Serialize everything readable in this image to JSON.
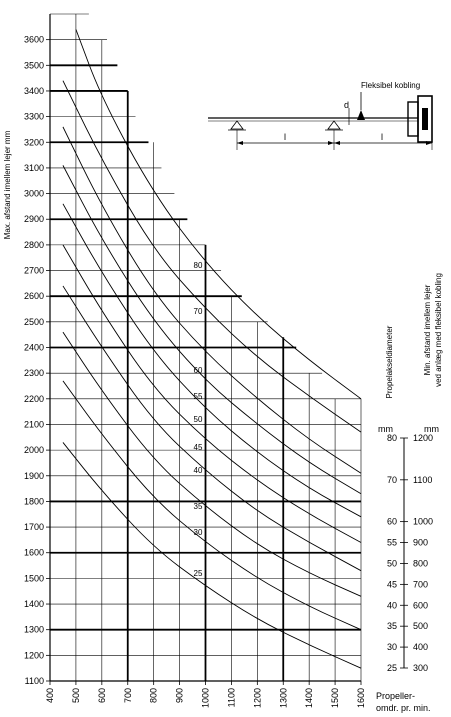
{
  "chart_data": {
    "type": "line",
    "title": "",
    "xlabel_line1": "Propeller-",
    "xlabel_line2": "omdr. pr. min.",
    "ylabel": "Max. afstand imellem lejer mm",
    "xlim": [
      400,
      1600
    ],
    "ylim": [
      1100,
      3700
    ],
    "x_ticks": [
      "400",
      "500",
      "600",
      "700",
      "800",
      "900",
      "1000",
      "1100",
      "1200",
      "1300",
      "1400",
      "1500",
      "1600"
    ],
    "y_ticks": [
      "1100",
      "1200",
      "1300",
      "1400",
      "1500",
      "1600",
      "1700",
      "1800",
      "1900",
      "2000",
      "2100",
      "2200",
      "2300",
      "2400",
      "2500",
      "2600",
      "2700",
      "2800",
      "2900",
      "3000",
      "3100",
      "3200",
      "3300",
      "3400",
      "3500",
      "3600"
    ],
    "grid": "stepped",
    "series": [
      {
        "name": "25",
        "x": [
          450,
          600,
          800,
          1000,
          1200,
          1400,
          1600
        ],
        "y": [
          2030,
          1840,
          1620,
          1470,
          1340,
          1240,
          1150
        ]
      },
      {
        "name": "30",
        "x": [
          450,
          600,
          800,
          1000,
          1200,
          1400,
          1600
        ],
        "y": [
          2270,
          2060,
          1810,
          1640,
          1500,
          1390,
          1300
        ]
      },
      {
        "name": "35",
        "x": [
          450,
          600,
          800,
          1000,
          1200,
          1400,
          1600
        ],
        "y": [
          2460,
          2230,
          1960,
          1780,
          1630,
          1520,
          1430
        ]
      },
      {
        "name": "40",
        "x": [
          450,
          600,
          800,
          1000,
          1200,
          1400,
          1600
        ],
        "y": [
          2640,
          2400,
          2110,
          1920,
          1760,
          1640,
          1530
        ]
      },
      {
        "name": "45",
        "x": [
          450,
          600,
          800,
          1000,
          1200,
          1400,
          1600
        ],
        "y": [
          2800,
          2540,
          2240,
          2040,
          1880,
          1750,
          1640
        ]
      },
      {
        "name": "50",
        "x": [
          450,
          600,
          800,
          1000,
          1200,
          1400,
          1600
        ],
        "y": [
          2960,
          2690,
          2380,
          2160,
          1990,
          1850,
          1740
        ]
      },
      {
        "name": "55",
        "x": [
          450,
          600,
          800,
          1000,
          1200,
          1400,
          1600
        ],
        "y": [
          3110,
          2820,
          2500,
          2270,
          2100,
          1950,
          1830
        ]
      },
      {
        "name": "60",
        "x": [
          450,
          600,
          800,
          1000,
          1200,
          1400,
          1600
        ],
        "y": [
          3260,
          2950,
          2610,
          2380,
          2200,
          2040,
          1910
        ]
      },
      {
        "name": "70",
        "x": [
          450,
          600,
          800,
          1000,
          1200,
          1400,
          1600
        ],
        "y": [
          3440,
          3130,
          2780,
          2550,
          2360,
          2210,
          2070
        ]
      },
      {
        "name": "80",
        "x": [
          500,
          600,
          800,
          1000,
          1200,
          1400,
          1600
        ],
        "y": [
          3640,
          3370,
          3000,
          2730,
          2520,
          2350,
          2200
        ]
      }
    ],
    "curve_labels": [
      {
        "text": "80",
        "x": 1000,
        "y": 2710
      },
      {
        "text": "70",
        "x": 1000,
        "y": 2530
      },
      {
        "text": "60",
        "x": 1000,
        "y": 2300
      },
      {
        "text": "55",
        "x": 1000,
        "y": 2200
      },
      {
        "text": "50",
        "x": 1000,
        "y": 2110
      },
      {
        "text": "45",
        "x": 1000,
        "y": 2000
      },
      {
        "text": "40",
        "x": 1000,
        "y": 1910
      },
      {
        "text": "35",
        "x": 1000,
        "y": 1770
      },
      {
        "text": "30",
        "x": 1000,
        "y": 1670
      },
      {
        "text": "25",
        "x": 1000,
        "y": 1510
      }
    ],
    "steps": [
      {
        "y": 1200,
        "x_end": 1600,
        "thick": false
      },
      {
        "y": 1300,
        "x_end": 1600,
        "thick": true
      },
      {
        "y": 1400,
        "x_end": 1600,
        "thick": false
      },
      {
        "y": 1500,
        "x_end": 1600,
        "thick": false
      },
      {
        "y": 1600,
        "x_end": 1600,
        "thick": true
      },
      {
        "y": 1700,
        "x_end": 1600,
        "thick": false
      },
      {
        "y": 1800,
        "x_end": 1600,
        "thick": true
      },
      {
        "y": 1900,
        "x_end": 1600,
        "thick": false
      },
      {
        "y": 2000,
        "x_end": 1600,
        "thick": false
      },
      {
        "y": 2100,
        "x_end": 1600,
        "thick": false
      },
      {
        "y": 2200,
        "x_end": 1600,
        "thick": false
      },
      {
        "y": 2300,
        "x_end": 1450,
        "thick": false
      },
      {
        "y": 2400,
        "x_end": 1350,
        "thick": true
      },
      {
        "y": 2500,
        "x_end": 1240,
        "thick": false
      },
      {
        "y": 2600,
        "x_end": 1140,
        "thick": true
      },
      {
        "y": 2700,
        "x_end": 1060,
        "thick": false
      },
      {
        "y": 2800,
        "x_end": 1000,
        "thick": false
      },
      {
        "y": 2900,
        "x_end": 930,
        "thick": true
      },
      {
        "y": 3000,
        "x_end": 880,
        "thick": false
      },
      {
        "y": 3100,
        "x_end": 830,
        "thick": false
      },
      {
        "y": 3200,
        "x_end": 780,
        "thick": true
      },
      {
        "y": 3300,
        "x_end": 730,
        "thick": false
      },
      {
        "y": 3400,
        "x_end": 700,
        "thick": true
      },
      {
        "y": 3500,
        "x_end": 660,
        "thick": true
      },
      {
        "y": 3600,
        "x_end": 620,
        "thick": false
      },
      {
        "y": 3700,
        "x_end": 550,
        "thick": false
      }
    ],
    "verticals": [
      {
        "x": 500,
        "y_top": 3700,
        "thick": false
      },
      {
        "x": 600,
        "y_top": 3600,
        "thick": false
      },
      {
        "x": 700,
        "y_top": 3400,
        "thick": true
      },
      {
        "x": 800,
        "y_top": 3200,
        "thick": false
      },
      {
        "x": 900,
        "y_top": 2900,
        "thick": false
      },
      {
        "x": 1000,
        "y_top": 2800,
        "thick": true
      },
      {
        "x": 1100,
        "y_top": 2600,
        "thick": false
      },
      {
        "x": 1200,
        "y_top": 2500,
        "thick": false
      },
      {
        "x": 1300,
        "y_top": 2440,
        "thick": true
      },
      {
        "x": 1400,
        "y_top": 2300,
        "thick": false
      },
      {
        "x": 1500,
        "y_top": 2200,
        "thick": false
      },
      {
        "x": 1600,
        "y_top": 2200,
        "thick": false
      }
    ],
    "right_scale": {
      "title_left": "Propelakseldiameter",
      "title_right_line1": "Min. afstand imellem lejer",
      "title_right_line2": "ved anlæg med fleksibel kobling",
      "unit_left": "mm",
      "unit_right": "mm",
      "ticks": [
        {
          "d": "80",
          "l": "1200"
        },
        {
          "d": "70",
          "l": "1100"
        },
        {
          "d": "60",
          "l": "1000"
        },
        {
          "d": "55",
          "l": "900"
        },
        {
          "d": "50",
          "l": "800"
        },
        {
          "d": "45",
          "l": "700"
        },
        {
          "d": "40",
          "l": "600"
        },
        {
          "d": "35",
          "l": "500"
        },
        {
          "d": "30",
          "l": "400"
        },
        {
          "d": "25",
          "l": "300"
        }
      ]
    },
    "inset": {
      "label": "Fleksibel kobling",
      "dim_d": "d",
      "dim_l1": "l",
      "dim_l2": "l"
    }
  }
}
